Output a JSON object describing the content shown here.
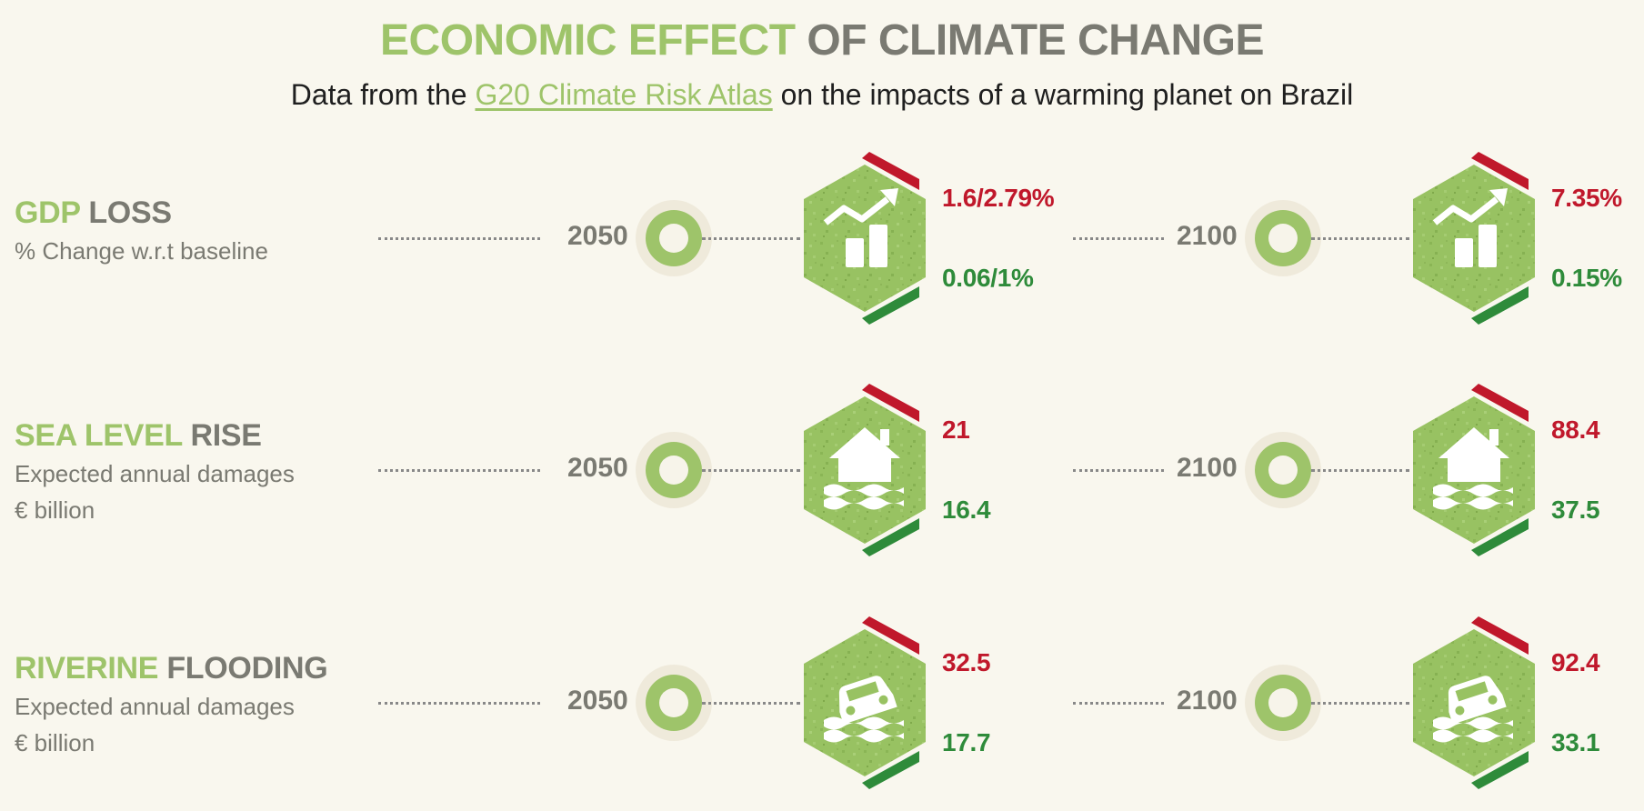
{
  "header": {
    "title_green": "ECONOMIC EFFECT",
    "title_grey": "OF CLIMATE CHANGE",
    "subtitle_pre": "Data from the",
    "subtitle_link": "G20 Climate Risk Atlas",
    "subtitle_post": "on the impacts of a warming planet on Brazil"
  },
  "colors": {
    "accent_green": "#9ec46a",
    "grey": "#7a7a72",
    "red": "#c0182b",
    "dark_green": "#2e8b3a",
    "background": "#f9f7ee"
  },
  "rows": [
    {
      "title_green": "GDP",
      "title_grey": "LOSS",
      "sub1": "% Change w.r.t baseline",
      "sub2": "",
      "icon": "gdp-chart-icon",
      "periods": [
        {
          "year": "2050",
          "high": "1.6/2.79%",
          "low": "0.06/1%"
        },
        {
          "year": "2100",
          "high": "7.35%",
          "low": "0.15%"
        }
      ]
    },
    {
      "title_green": "SEA LEVEL",
      "title_grey": "RISE",
      "sub1": "Expected annual damages",
      "sub2": "€ billion",
      "icon": "flooded-house-icon",
      "periods": [
        {
          "year": "2050",
          "high": "21",
          "low": "16.4"
        },
        {
          "year": "2100",
          "high": "88.4",
          "low": "37.5"
        }
      ]
    },
    {
      "title_green": "RIVERINE",
      "title_grey": "FLOODING",
      "sub1": "Expected annual damages",
      "sub2": "€ billion",
      "icon": "flooded-car-icon",
      "periods": [
        {
          "year": "2050",
          "high": "32.5",
          "low": "17.7"
        },
        {
          "year": "2100",
          "high": "92.4",
          "low": "33.1"
        }
      ]
    }
  ]
}
